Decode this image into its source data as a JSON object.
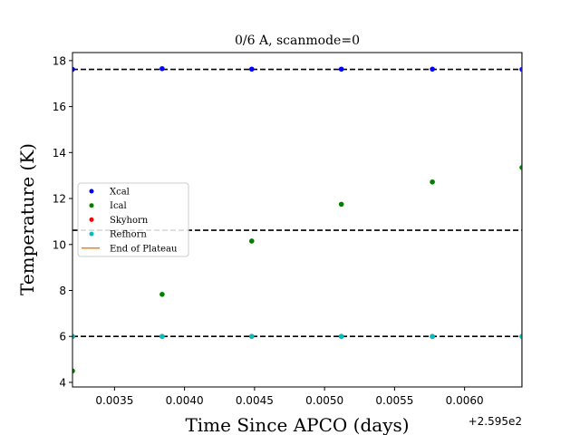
{
  "chart_data": {
    "type": "scatter",
    "title": "0/6 A, scanmode=0",
    "xlabel": "Time Since APCO (days)",
    "ylabel": "Temperature (K)",
    "x_offset_label": "+2.595e2",
    "xlim": [
      0.0032,
      0.00641
    ],
    "ylim": [
      3.8,
      18.35
    ],
    "xticks": [
      0.0035,
      0.004,
      0.0045,
      0.005,
      0.0055,
      0.006
    ],
    "xtick_labels": [
      "0.0035",
      "0.0040",
      "0.0045",
      "0.0050",
      "0.0055",
      "0.0060"
    ],
    "yticks": [
      4,
      6,
      8,
      10,
      12,
      14,
      16,
      18
    ],
    "ytick_labels": [
      "4",
      "6",
      "8",
      "10",
      "12",
      "14",
      "16",
      "18"
    ],
    "grid": false,
    "legend_position": "center-left",
    "series": [
      {
        "name": "Xcal",
        "color": "#0000ff",
        "marker": "point",
        "x": [
          0.0032,
          0.00384,
          0.00448,
          0.00512,
          0.00577,
          0.00641
        ],
        "y": [
          17.62,
          17.65,
          17.63,
          17.63,
          17.63,
          17.62
        ]
      },
      {
        "name": "Ical",
        "color": "#008000",
        "marker": "point",
        "x": [
          0.0032,
          0.00384,
          0.00448,
          0.00512,
          0.00577,
          0.00641
        ],
        "y": [
          4.5,
          7.83,
          10.15,
          11.75,
          12.72,
          13.35
        ]
      },
      {
        "name": "Skyhorn",
        "color": "#ff0000",
        "marker": "point",
        "x": [
          0.0032,
          0.00384,
          0.00448,
          0.00512,
          0.00577,
          0.00641
        ],
        "y": [
          6.0,
          6.0,
          6.0,
          6.0,
          6.0,
          6.0
        ]
      },
      {
        "name": "Refhorn",
        "color": "#00bfbf",
        "marker": "point",
        "x": [
          0.0032,
          0.00384,
          0.00448,
          0.00512,
          0.00577,
          0.00641
        ],
        "y": [
          6.0,
          6.0,
          6.0,
          6.0,
          6.0,
          6.0
        ]
      },
      {
        "name": "End of Plateau",
        "color": "#ff7f0e",
        "marker": "vline",
        "x": [
          0.00641
        ]
      }
    ],
    "hlines": [
      {
        "y": 17.62,
        "color": "#000000",
        "style": "dashed"
      },
      {
        "y": 10.62,
        "color": "#000000",
        "style": "dashed"
      },
      {
        "y": 6.0,
        "color": "#000000",
        "style": "dashed"
      }
    ]
  }
}
